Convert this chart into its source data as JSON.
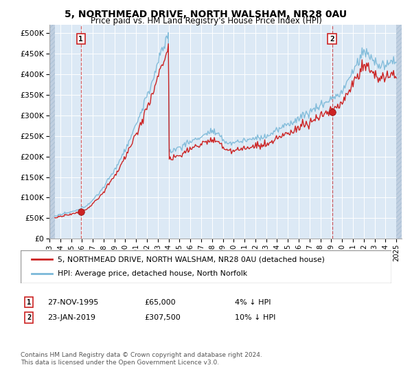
{
  "title": "5, NORTHMEAD DRIVE, NORTH WALSHAM, NR28 0AU",
  "subtitle": "Price paid vs. HM Land Registry's House Price Index (HPI)",
  "legend_line1": "5, NORTHMEAD DRIVE, NORTH WALSHAM, NR28 0AU (detached house)",
  "legend_line2": "HPI: Average price, detached house, North Norfolk",
  "footnote": "Contains HM Land Registry data © Crown copyright and database right 2024.\nThis data is licensed under the Open Government Licence v3.0.",
  "sale1": {
    "date_num": 1995.9,
    "price": 65000,
    "label": "1",
    "date_str": "27-NOV-1995",
    "pct": "4% ↓ HPI"
  },
  "sale2": {
    "date_num": 2019.07,
    "price": 307500,
    "label": "2",
    "date_str": "23-JAN-2019",
    "pct": "10% ↓ HPI"
  },
  "hpi_color": "#7ab8d8",
  "price_color": "#cc2222",
  "dot_color": "#cc2222",
  "vline_color": "#cc2222",
  "background_color": "#dce9f5",
  "hatch_color": "#c0cfe0",
  "grid_color": "#ffffff",
  "ylim": [
    0,
    520000
  ],
  "xlim": [
    1993.0,
    2025.5
  ],
  "yticks": [
    0,
    50000,
    100000,
    150000,
    200000,
    250000,
    300000,
    350000,
    400000,
    450000,
    500000
  ],
  "xticks": [
    1993,
    1994,
    1995,
    1996,
    1997,
    1998,
    1999,
    2000,
    2001,
    2002,
    2003,
    2004,
    2005,
    2006,
    2007,
    2008,
    2009,
    2010,
    2011,
    2012,
    2013,
    2014,
    2015,
    2016,
    2017,
    2018,
    2019,
    2020,
    2021,
    2022,
    2023,
    2024,
    2025
  ],
  "hatch_left_end": 1993.5,
  "hatch_right_start": 2025.0
}
